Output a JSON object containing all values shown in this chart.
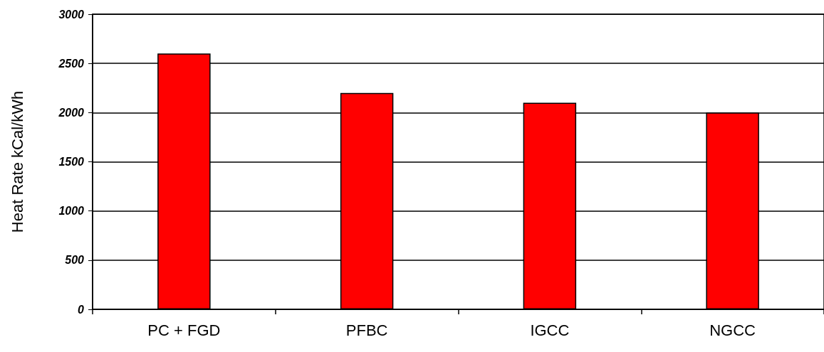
{
  "chart_data": {
    "type": "bar",
    "ylabel": "Heat Rate kCal/kWh",
    "categories": [
      "PC + FGD",
      "PFBC",
      "IGCC",
      "NGCC"
    ],
    "values": [
      2600,
      2200,
      2100,
      2000
    ],
    "color": "#ff0000",
    "ylim": [
      0,
      3000
    ],
    "yticks": [
      0,
      500,
      1000,
      1500,
      2000,
      2500,
      3000
    ],
    "grid": "y"
  }
}
